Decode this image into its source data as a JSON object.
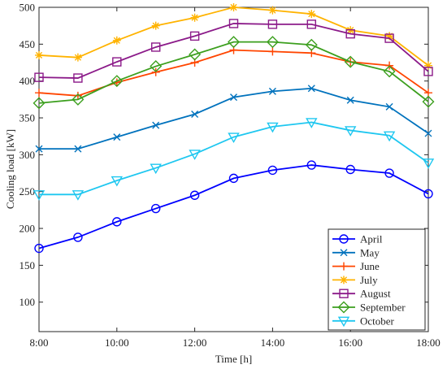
{
  "chart_data": {
    "type": "line",
    "xlabel": "Time  [h]",
    "ylabel": "Cooling load  [kW]",
    "x": [
      8,
      9,
      10,
      11,
      12,
      13,
      14,
      15,
      16,
      17,
      18
    ],
    "xlim": [
      8,
      18
    ],
    "ylim": [
      60,
      500
    ],
    "xticks": [
      8,
      10,
      12,
      14,
      16,
      18
    ],
    "xtick_labels": [
      "8:00",
      "10:00",
      "12:00",
      "14:00",
      "16:00",
      "18:00"
    ],
    "yticks": [
      100,
      150,
      200,
      250,
      300,
      350,
      400,
      450,
      500
    ],
    "ytick_labels": [
      "100",
      "150",
      "200",
      "250",
      "300",
      "350",
      "400",
      "450",
      "500"
    ],
    "grid": false,
    "legend_position": "bottom-right",
    "series": [
      {
        "name": "April",
        "color": "#0000ff",
        "marker": "circle",
        "values": [
          173,
          188,
          209,
          227,
          245,
          268,
          279,
          286,
          280,
          275,
          247
        ]
      },
      {
        "name": "May",
        "color": "#0072bd",
        "marker": "x",
        "values": [
          308,
          308,
          324,
          340,
          355,
          378,
          386,
          390,
          374,
          365,
          329
        ]
      },
      {
        "name": "June",
        "color": "#ff4500",
        "marker": "plus",
        "values": [
          384,
          380,
          398,
          412,
          425,
          442,
          440,
          438,
          426,
          421,
          384
        ]
      },
      {
        "name": "July",
        "color": "#ffb300",
        "marker": "asterisk",
        "values": [
          435,
          432,
          455,
          475,
          486,
          500,
          496,
          491,
          469,
          461,
          421
        ]
      },
      {
        "name": "August",
        "color": "#8b1a89",
        "marker": "square",
        "values": [
          405,
          404,
          426,
          446,
          461,
          478,
          477,
          477,
          464,
          458,
          413
        ]
      },
      {
        "name": "September",
        "color": "#3c9f1e",
        "marker": "diamond",
        "values": [
          370,
          375,
          400,
          420,
          436,
          453,
          453,
          449,
          426,
          413,
          372
        ]
      },
      {
        "name": "October",
        "color": "#1fc7f0",
        "marker": "triangle-down",
        "values": [
          246,
          246,
          265,
          282,
          301,
          324,
          338,
          344,
          333,
          326,
          289
        ]
      }
    ]
  }
}
